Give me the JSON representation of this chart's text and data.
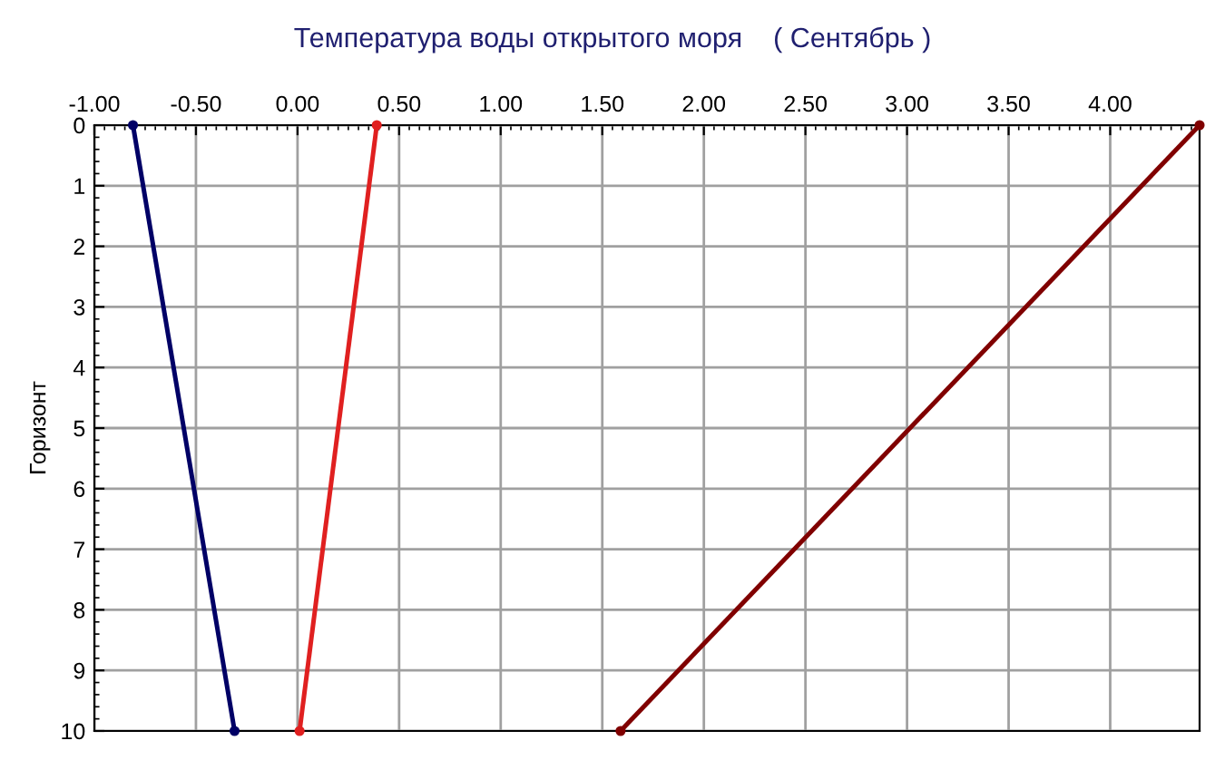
{
  "chart_data": {
    "type": "line",
    "title": "Температура воды открытого моря    ( Сентябрь )",
    "ylabel": "Горизонт",
    "xlim": [
      -1.0,
      4.44
    ],
    "ylim": [
      10,
      0
    ],
    "xticks": [
      {
        "value": -1.0,
        "label": "-1.00"
      },
      {
        "value": -0.5,
        "label": "-0.50"
      },
      {
        "value": 0,
        "label": "0.00"
      },
      {
        "value": 0.5,
        "label": "0.50"
      },
      {
        "value": 1.0,
        "label": "1.00"
      },
      {
        "value": 1.5,
        "label": "1.50"
      },
      {
        "value": 2.0,
        "label": "2.00"
      },
      {
        "value": 2.5,
        "label": "2.50"
      },
      {
        "value": 3.0,
        "label": "3.00"
      },
      {
        "value": 3.5,
        "label": "3.50"
      },
      {
        "value": 4.0,
        "label": "4.00"
      }
    ],
    "yticks": [
      0,
      1,
      2,
      3,
      4,
      5,
      6,
      7,
      8,
      9,
      10
    ],
    "grid": true,
    "marker": "circle",
    "line_style": "solid",
    "series": [
      {
        "color": "#000066",
        "x": [
          -0.81,
          -0.31
        ],
        "values": [
          0,
          10
        ]
      },
      {
        "color": "#e02020",
        "x": [
          0.39,
          0.01
        ],
        "values": [
          0,
          10
        ]
      },
      {
        "color": "#800000",
        "x": [
          4.44,
          1.59
        ],
        "values": [
          0,
          10
        ]
      }
    ]
  }
}
